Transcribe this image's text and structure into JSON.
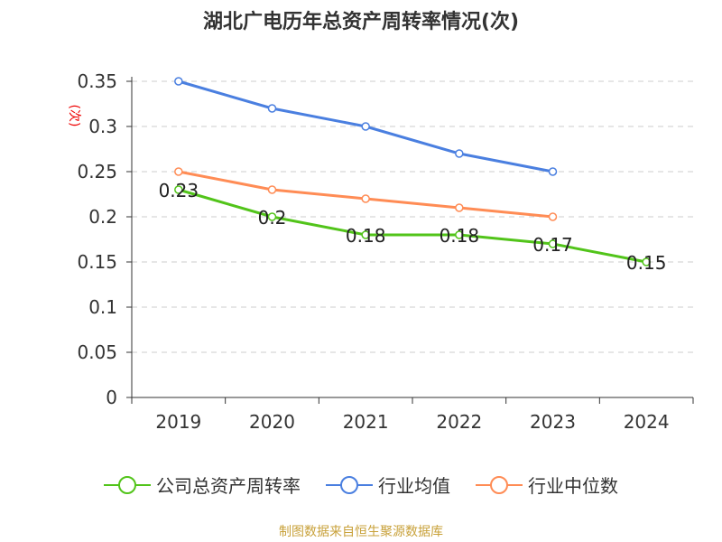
{
  "title": "湖北广电历年总资产周转率情况(次)",
  "source": "制图数据来自恒生聚源数据库",
  "chart_data": {
    "type": "line",
    "title": "湖北广电历年总资产周转率情况(次)",
    "ylabel": "(次)",
    "categories": [
      "2019",
      "2020",
      "2021",
      "2022",
      "2023",
      "2024"
    ],
    "ylim": [
      0,
      0.35
    ],
    "yticks": [
      "0",
      "0.05",
      "0.1",
      "0.15",
      "0.2",
      "0.25",
      "0.3",
      "0.35"
    ],
    "grid": true,
    "legend_position": "bottom",
    "series": [
      {
        "name": "公司总资产周转率",
        "color": "#52c41a",
        "values": [
          0.23,
          0.2,
          0.18,
          0.18,
          0.17,
          0.15
        ],
        "labels": [
          "0.23",
          "0.2",
          "0.18",
          "0.18",
          "0.17",
          "0.15"
        ]
      },
      {
        "name": "行业均值",
        "color": "#4a7fe0",
        "values": [
          0.35,
          0.32,
          0.3,
          0.27,
          0.25,
          null
        ]
      },
      {
        "name": "行业中位数",
        "color": "#ff8c55",
        "values": [
          0.25,
          0.23,
          0.22,
          0.21,
          0.2,
          null
        ]
      }
    ]
  }
}
